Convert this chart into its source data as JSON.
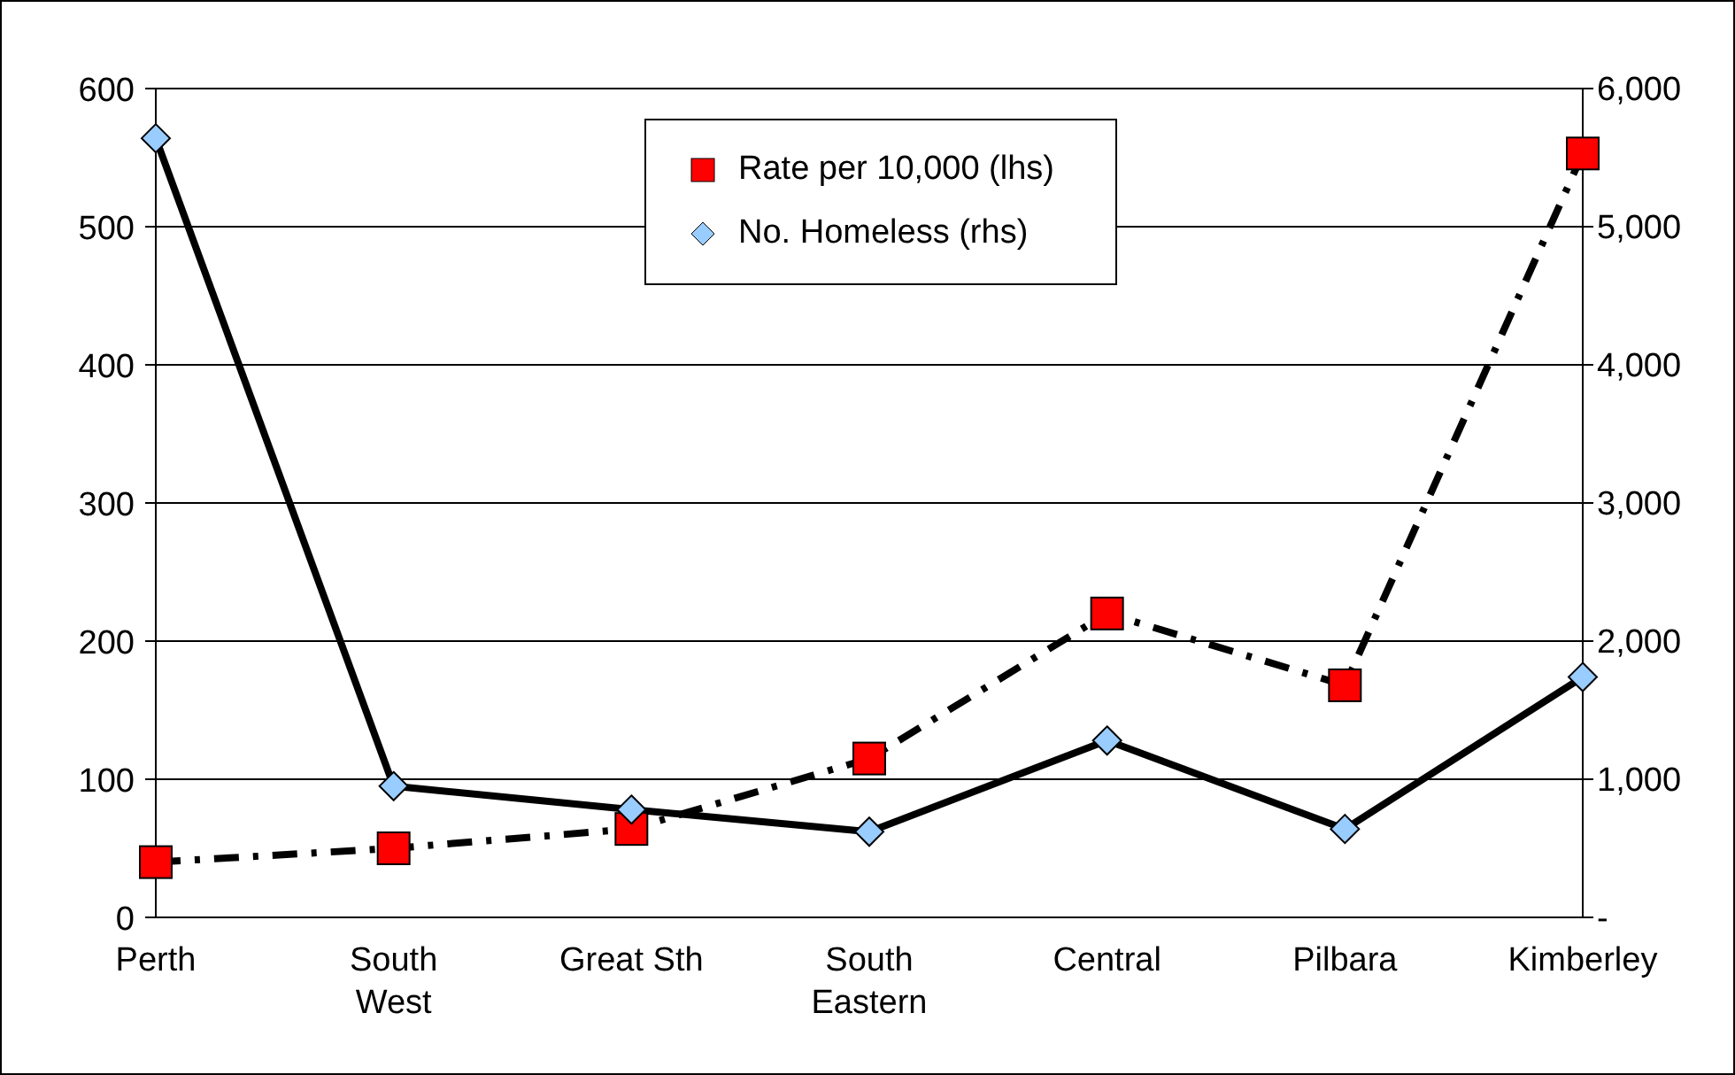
{
  "chart_data": {
    "type": "line",
    "categories": [
      "Perth",
      "South\nWest",
      "Great Sth",
      "South\nEastern",
      "Central",
      "Pilbara",
      "Kimberley"
    ],
    "series": [
      {
        "name": "Rate per 10,000 (lhs)",
        "color": "#ff0000",
        "values": [
          40,
          50,
          64,
          115,
          220,
          168,
          553
        ],
        "marker": "square",
        "line_style": "dashed"
      },
      {
        "name": "No. Homeless (rhs)",
        "color": "#99ccff",
        "values": [
          5640,
          950,
          780,
          620,
          1280,
          640,
          1740
        ],
        "marker": "diamond",
        "line_style": "solid",
        "axis": "y2"
      }
    ],
    "ylim": [
      0,
      600
    ],
    "yticks": [
      0,
      100,
      200,
      300,
      400,
      500,
      600
    ],
    "y2lim": [
      0,
      6000
    ],
    "y2ticks": [
      {
        "value": 0,
        "label": "-"
      },
      {
        "value": 1000,
        "label": "1,000"
      },
      {
        "value": 2000,
        "label": "2,000"
      },
      {
        "value": 3000,
        "label": "3,000"
      },
      {
        "value": 4000,
        "label": "4,000"
      },
      {
        "value": 5000,
        "label": "5,000"
      },
      {
        "value": 6000,
        "label": "6,000"
      }
    ],
    "grid": "y",
    "legend": "top"
  }
}
